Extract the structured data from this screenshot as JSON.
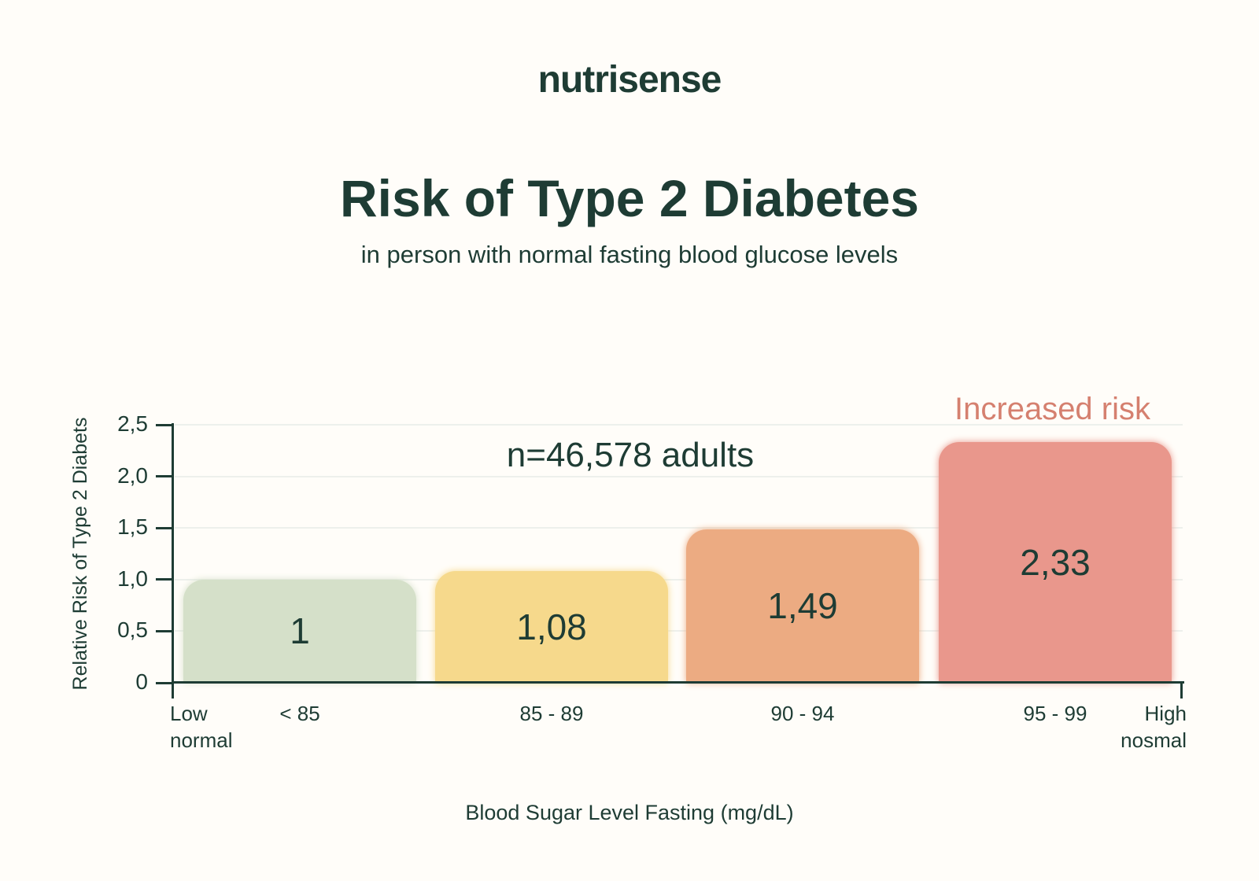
{
  "logo": {
    "text": "nutrisense"
  },
  "header": {
    "title": "Risk of Type 2 Diabetes",
    "subtitle": "in person with normal fasting blood glucose levels"
  },
  "chart_data": {
    "type": "bar",
    "title": "Risk of Type 2 Diabetes",
    "subtitle": "in person with normal fasting blood glucose levels",
    "categories": [
      "< 85",
      "85 - 89",
      "90 - 94",
      "95 - 99"
    ],
    "values": [
      1,
      1.08,
      1.49,
      2.33
    ],
    "value_labels": [
      "1",
      "1,08",
      "1,49",
      "2,33"
    ],
    "bar_colors": [
      "#d5e0c9",
      "#f6d98c",
      "#ecab82",
      "#e9978c"
    ],
    "xlabel": "Blood Sugar Level Fasting (mg/dL)",
    "ylabel": "Relative Risk of Type 2 Diabets",
    "ylim": [
      0,
      2.5
    ],
    "ytick_values": [
      0,
      0.5,
      1,
      1.5,
      2,
      2.5
    ],
    "ytick_labels": [
      "0",
      "0,5",
      "1,0",
      "1,5",
      "2,0",
      "2,5"
    ],
    "x_edge_labels": {
      "left": [
        "Low",
        "normal"
      ],
      "right": [
        "High",
        "nosmal"
      ]
    },
    "annotations": [
      {
        "text": "n=46,578 adults",
        "color": "#1e3c34"
      },
      {
        "text": "Increased risk",
        "color": "#d5806f"
      }
    ],
    "grid": true,
    "legend": false
  },
  "colors": {
    "background": "#fffdf9",
    "text_dark": "#1e3c34",
    "accent_salmon": "#d5806f",
    "gridline": "#edf0ec"
  }
}
